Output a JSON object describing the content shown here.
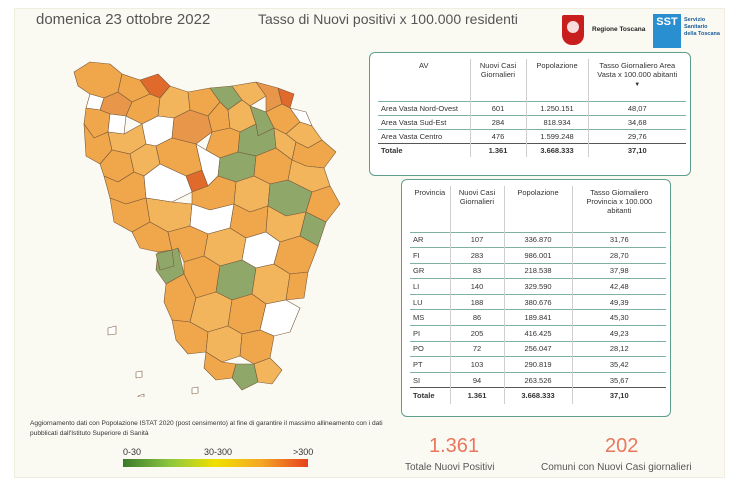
{
  "header": {
    "date": "domenica 23 ottobre 2022",
    "title": "Tasso di Nuovi positivi x 100.000 residenti",
    "logo_rt_text": "Regione Toscana",
    "logo_sst_abbr": "SST",
    "logo_sst_text": "Servizio Sanitario della Toscana"
  },
  "av_table": {
    "headers": [
      "AV",
      "Nuovi Casi Giornalieri",
      "Popolazione",
      "Tasso Giornaliero Area Vasta x 100.000 abitanti"
    ],
    "rows": [
      [
        "Area Vasta Nord-Ovest",
        "601",
        "1.250.151",
        "48,07"
      ],
      [
        "Area Vasta Sud-Est",
        "284",
        "818.934",
        "34,68"
      ],
      [
        "Area Vasta Centro",
        "476",
        "1.599.248",
        "29,76"
      ]
    ],
    "total": [
      "Totale",
      "1.361",
      "3.668.333",
      "37,10"
    ]
  },
  "prov_table": {
    "headers": [
      "Provincia",
      "Nuovi Casi Giornalieri",
      "Popolazione",
      "Tasso Giornaliero Provincia x 100.000 abitanti"
    ],
    "rows": [
      [
        "AR",
        "107",
        "336.870",
        "31,76"
      ],
      [
        "FI",
        "283",
        "986.001",
        "28,70"
      ],
      [
        "GR",
        "83",
        "218.538",
        "37,98"
      ],
      [
        "LI",
        "140",
        "329.590",
        "42,48"
      ],
      [
        "LU",
        "188",
        "380.676",
        "49,39"
      ],
      [
        "MS",
        "86",
        "189.841",
        "45,30"
      ],
      [
        "PI",
        "205",
        "416.425",
        "49,23"
      ],
      [
        "PO",
        "72",
        "256.047",
        "28,12"
      ],
      [
        "PT",
        "103",
        "290.819",
        "35,42"
      ],
      [
        "SI",
        "94",
        "263.526",
        "35,67"
      ]
    ],
    "total": [
      "Totale",
      "1.361",
      "3.668.333",
      "37,10"
    ]
  },
  "note": "Aggiornamento dati con Popolazione ISTAT 2020 (post censimento) al fine di garantire il massimo allineamento con i dati pubblicati dall'Istituto Superiore di Sanità",
  "legend": {
    "low": "0-30",
    "mid": "30-300",
    "high": ">300"
  },
  "kpis": {
    "total_value": "1.361",
    "total_label": "Totale Nuovi Positivi",
    "comuni_value": "202",
    "comuni_label": "Comuni con Nuovi Casi giornalieri"
  },
  "colors": {
    "accent": "#e8775e",
    "table_border": "#5e9e8e",
    "map_orange": "#f0a64a",
    "map_green": "#8fa86a",
    "map_red": "#e06a2c",
    "map_white": "#ffffff"
  }
}
